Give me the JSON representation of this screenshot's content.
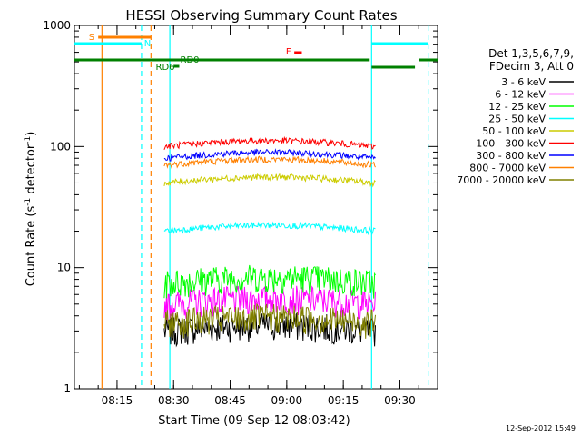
{
  "chart_data": {
    "type": "line",
    "title": "HESSI Observing Summary Count Rates",
    "xlabel": "Start Time (09-Sep-12 08:03:42)",
    "ylabel_main": "Count Rate (s",
    "ylabel_sup1": "-1",
    "ylabel_mid": " detector",
    "ylabel_sup2": "-1",
    "ylabel_end": ")",
    "yscale": "log",
    "ylim": [
      1,
      1000
    ],
    "xlim": [
      "08:03:42",
      "09:40:00"
    ],
    "x_ticks": [
      "08:15",
      "08:30",
      "08:45",
      "09:00",
      "09:15",
      "09:30"
    ],
    "y_ticks": [
      "1",
      "10",
      "100",
      "1000"
    ],
    "timestamp": "12-Sep-2012 15:49",
    "legend": {
      "header1": "Det 1,3,5,6,7,9,",
      "header2": "FDecim 3, Att 0",
      "placement": "right"
    },
    "series": [
      {
        "name": "3 - 6 keV",
        "color": "#000000",
        "level": 3.0
      },
      {
        "name": "6 - 12 keV",
        "color": "#ff00ff",
        "level": 5.0
      },
      {
        "name": "12 - 25 keV",
        "color": "#00ff00",
        "level": 7.5
      },
      {
        "name": "25 - 50 keV",
        "color": "#00ffff",
        "level": 20
      },
      {
        "name": "50 - 100 keV",
        "color": "#cccc00",
        "level": 50
      },
      {
        "name": "100 - 300 keV",
        "color": "#ff0000",
        "level": 100
      },
      {
        "name": "300 - 800 keV",
        "color": "#0000ff",
        "level": 80
      },
      {
        "name": "800 - 7000 keV",
        "color": "#ff8000",
        "level": 70
      },
      {
        "name": "7000 - 20000 keV",
        "color": "#808000",
        "level": 3.5
      }
    ],
    "flags": [
      {
        "label": "S",
        "color": "#ff8000"
      },
      {
        "label": "N",
        "color": "#00ffff"
      },
      {
        "label": "RD0",
        "color": "#008000"
      },
      {
        "label": "RD6",
        "color": "#008000"
      },
      {
        "label": "F",
        "color": "#ff0000"
      }
    ]
  }
}
